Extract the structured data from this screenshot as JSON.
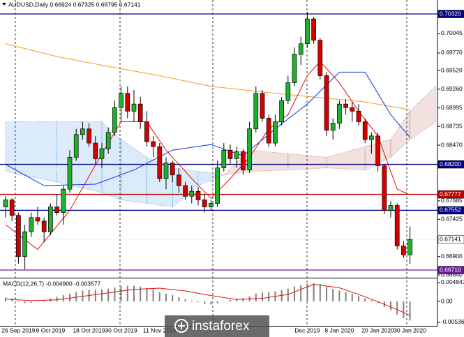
{
  "chart_data": {
    "type": "candlestick",
    "title": "AUDUSD,Daily  0.66924 0.67325 0.66795 0.67141",
    "watermark": "instaforex",
    "categories": [
      null,
      null,
      "26 Sep 2019",
      null,
      null,
      null,
      null,
      "8 Oct 2019",
      null,
      null,
      null,
      null,
      null,
      "18 Oct 2019",
      null,
      null,
      null,
      null,
      "30 Oct 2019",
      null,
      null,
      null,
      null,
      null,
      "11 Nov 2019",
      null,
      null,
      null,
      null,
      null,
      null,
      null,
      null,
      null,
      null,
      null,
      null,
      null,
      null,
      null,
      null,
      null,
      null,
      null,
      null,
      null,
      null,
      "Dec 2019",
      null,
      null,
      null,
      null,
      "8 Jan 2020",
      null,
      null,
      null,
      null,
      null,
      "20 Jan 2020",
      null,
      null,
      null,
      null,
      "30 Jan 2020"
    ],
    "open": [
      0.676,
      0.677,
      0.6748,
      0.669,
      0.6725,
      0.6745,
      0.674,
      0.6725,
      0.676,
      0.6752,
      0.6785,
      0.683,
      0.6862,
      0.687,
      0.685,
      0.6828,
      0.6842,
      0.6865,
      0.69,
      0.692,
      0.6895,
      0.6905,
      0.688,
      0.6852,
      0.6845,
      0.68,
      0.6822,
      0.6805,
      0.679,
      0.6775,
      0.6782,
      0.677,
      0.676,
      0.6765,
      0.6815,
      0.684,
      0.6828,
      0.6838,
      0.6812,
      0.687,
      0.692,
      0.6885,
      0.685,
      0.688,
      0.691,
      0.6935,
      0.6975,
      0.699,
      0.7025,
      0.6995,
      0.6945,
      0.6868,
      0.6878,
      0.6905,
      0.69,
      0.6895,
      0.688,
      0.6855,
      0.686,
      0.6818,
      0.6755,
      0.6762,
      0.6705,
      0.66924
    ],
    "high": [
      0.6775,
      0.6772,
      0.6752,
      0.6735,
      0.6752,
      0.676,
      0.6745,
      0.6765,
      0.6778,
      0.679,
      0.684,
      0.687,
      0.688,
      0.6878,
      0.686,
      0.685,
      0.6872,
      0.691,
      0.693,
      0.693,
      0.6925,
      0.6915,
      0.6895,
      0.686,
      0.685,
      0.683,
      0.6825,
      0.6815,
      0.6795,
      0.679,
      0.6788,
      0.6778,
      0.677,
      0.6825,
      0.685,
      0.6848,
      0.6845,
      0.6842,
      0.688,
      0.693,
      0.6925,
      0.689,
      0.689,
      0.6915,
      0.6945,
      0.6985,
      0.7,
      0.7035,
      0.7028,
      0.6998,
      0.695,
      0.6885,
      0.691,
      0.6912,
      0.6908,
      0.6905,
      0.6885,
      0.6865,
      0.6865,
      0.682,
      0.6768,
      0.6765,
      0.6712,
      0.67325
    ],
    "low": [
      0.6745,
      0.674,
      0.668,
      0.6672,
      0.6718,
      0.6735,
      0.671,
      0.672,
      0.6748,
      0.6735,
      0.678,
      0.6825,
      0.6855,
      0.6845,
      0.682,
      0.6815,
      0.6835,
      0.686,
      0.688,
      0.6885,
      0.688,
      0.687,
      0.6845,
      0.683,
      0.6795,
      0.6785,
      0.6795,
      0.678,
      0.677,
      0.6765,
      0.6762,
      0.6752,
      0.6755,
      0.676,
      0.681,
      0.682,
      0.6815,
      0.6805,
      0.6808,
      0.6865,
      0.688,
      0.6845,
      0.6845,
      0.6875,
      0.6905,
      0.693,
      0.696,
      0.6985,
      0.699,
      0.694,
      0.686,
      0.6855,
      0.687,
      0.689,
      0.688,
      0.6875,
      0.685,
      0.6835,
      0.681,
      0.675,
      0.6745,
      0.67,
      0.6688,
      0.66795
    ],
    "close": [
      0.677,
      0.6748,
      0.669,
      0.6725,
      0.6745,
      0.674,
      0.6725,
      0.676,
      0.6752,
      0.6785,
      0.683,
      0.6862,
      0.687,
      0.685,
      0.6828,
      0.6842,
      0.6865,
      0.69,
      0.692,
      0.6895,
      0.6905,
      0.688,
      0.6852,
      0.6845,
      0.68,
      0.6822,
      0.6805,
      0.679,
      0.6775,
      0.6782,
      0.677,
      0.676,
      0.6765,
      0.6815,
      0.684,
      0.6828,
      0.6838,
      0.6812,
      0.687,
      0.692,
      0.6885,
      0.685,
      0.688,
      0.691,
      0.6935,
      0.6975,
      0.699,
      0.7025,
      0.6995,
      0.6945,
      0.6868,
      0.6878,
      0.6905,
      0.69,
      0.6895,
      0.688,
      0.6855,
      0.686,
      0.6818,
      0.6755,
      0.6762,
      0.6705,
      0.66924,
      0.67141
    ],
    "up_color": "#1fb030",
    "down_color": "#d40000",
    "ylim": [
      0.66602,
      0.70517
    ],
    "yticks": [
      {
        "value": 0.70045,
        "label": "0.70045"
      },
      {
        "value": 0.6977,
        "label": "0.69770"
      },
      {
        "value": 0.6952,
        "label": "0.69520"
      },
      {
        "value": 0.6926,
        "label": "0.69260"
      },
      {
        "value": 0.68995,
        "label": "0.68995"
      },
      {
        "value": 0.68735,
        "label": "0.68735"
      },
      {
        "value": 0.6847,
        "label": "0.68470"
      },
      {
        "value": 0.67685,
        "label": "0.67685"
      },
      {
        "value": 0.67425,
        "label": "0.67425"
      },
      {
        "value": 0.669,
        "label": "0.66900"
      },
      {
        "value": 0.6664,
        "label": "0.66640"
      }
    ],
    "levels": [
      {
        "value": 0.7032,
        "label": "0.70320",
        "color": "#000080",
        "line": true
      },
      {
        "value": 0.682,
        "label": "0.68200",
        "color": "#000080",
        "line": true
      },
      {
        "value": 0.67777,
        "label": "0.67777",
        "color": "#c00000",
        "line": true
      },
      {
        "value": 0.67552,
        "label": "0.67552",
        "color": "#000080",
        "line": true
      },
      {
        "value": 0.67141,
        "label": "0.67141",
        "color": "#ffffff",
        "line": false
      },
      {
        "value": 0.6671,
        "label": "0.66710",
        "color": "#6a1b9a",
        "line": true
      }
    ],
    "lines": [
      {
        "color": "#f0a020",
        "x": [
          0,
          8,
          16,
          24,
          32,
          40,
          48,
          56,
          63
        ],
        "values": [
          0.699,
          0.6972,
          0.6958,
          0.6945,
          0.693,
          0.6922,
          0.6915,
          0.6908,
          0.6897
        ]
      },
      {
        "color": "#1030e0",
        "x": [
          0,
          6,
          14,
          20,
          26,
          32,
          37,
          42,
          47,
          52,
          56,
          60,
          63
        ],
        "values": [
          0.682,
          0.679,
          0.6792,
          0.6812,
          0.684,
          0.6848,
          0.6832,
          0.687,
          0.6905,
          0.695,
          0.695,
          0.689,
          0.6858
        ]
      },
      {
        "color": "#e01010",
        "x": [
          0,
          5,
          10,
          15,
          18,
          22,
          25,
          29,
          32,
          35,
          38,
          41,
          44,
          47,
          49,
          52,
          55,
          58,
          61,
          63
        ],
        "values": [
          0.6735,
          0.67,
          0.6755,
          0.6835,
          0.688,
          0.688,
          0.684,
          0.68,
          0.6772,
          0.68,
          0.683,
          0.687,
          0.689,
          0.6945,
          0.6965,
          0.6935,
          0.6895,
          0.686,
          0.6785,
          0.6777
        ]
      }
    ],
    "cloud": {
      "x": [
        0,
        8,
        15,
        18,
        22,
        26,
        30,
        34,
        38,
        44,
        50,
        56,
        60,
        63,
        67
      ],
      "span_a": [
        0.681,
        0.6795,
        0.678,
        0.677,
        0.6765,
        0.676,
        0.679,
        0.6805,
        0.684,
        0.6835,
        0.683,
        0.6845,
        0.6855,
        0.6895,
        0.693
      ],
      "span_b": [
        0.688,
        0.688,
        0.688,
        0.6855,
        0.683,
        0.6815,
        0.681,
        0.6805,
        0.681,
        0.6812,
        0.6815,
        0.6812,
        0.683,
        0.6855,
        0.688
      ],
      "up_color": "#b06050",
      "down_color": "#3a8ee0"
    },
    "macd": {
      "label": "MACD(12,26,7) -0.004900 -0.003577",
      "ylim": [
        -0.00627,
        0.00574
      ],
      "yticks": [
        0.004847,
        {
          "value": 0,
          "label": "0.00"
        },
        -0.005364
      ],
      "histogram": [
        0.001,
        0.0008,
        0.0002,
        -0.0004,
        -0.0003,
        0.0,
        0.0003,
        0.0008,
        0.0012,
        0.0016,
        0.002,
        0.0024,
        0.0028,
        0.003,
        0.003,
        0.0031,
        0.0033,
        0.0036,
        0.0039,
        0.004,
        0.004,
        0.0038,
        0.0034,
        0.003,
        0.0024,
        0.002,
        0.0016,
        0.0011,
        0.0006,
        0.0002,
        -0.0002,
        -0.0006,
        -0.0008,
        -0.0005,
        0.0,
        0.0004,
        0.0007,
        0.0008,
        0.0013,
        0.002,
        0.0023,
        0.0024,
        0.0026,
        0.0029,
        0.0033,
        0.0038,
        0.0042,
        0.0046,
        0.0047,
        0.0045,
        0.0038,
        0.0032,
        0.0028,
        0.0024,
        0.002,
        0.0015,
        0.0008,
        0.0003,
        -0.0004,
        -0.0014,
        -0.0022,
        -0.0034,
        -0.0043,
        -0.0049
      ],
      "histogram_color": "#808080",
      "signal": {
        "color": "#e01010",
        "x": [
          0,
          4,
          8,
          12,
          16,
          20,
          24,
          28,
          32,
          36,
          40,
          44,
          48,
          52,
          56,
          60,
          63
        ],
        "values": [
          0.0006,
          0.0002,
          0.0004,
          0.0013,
          0.0022,
          0.0031,
          0.0034,
          0.0027,
          0.0015,
          0.0005,
          0.0008,
          0.0018,
          0.0044,
          0.0035,
          0.0012,
          -0.0014,
          -0.003577
        ]
      }
    }
  }
}
